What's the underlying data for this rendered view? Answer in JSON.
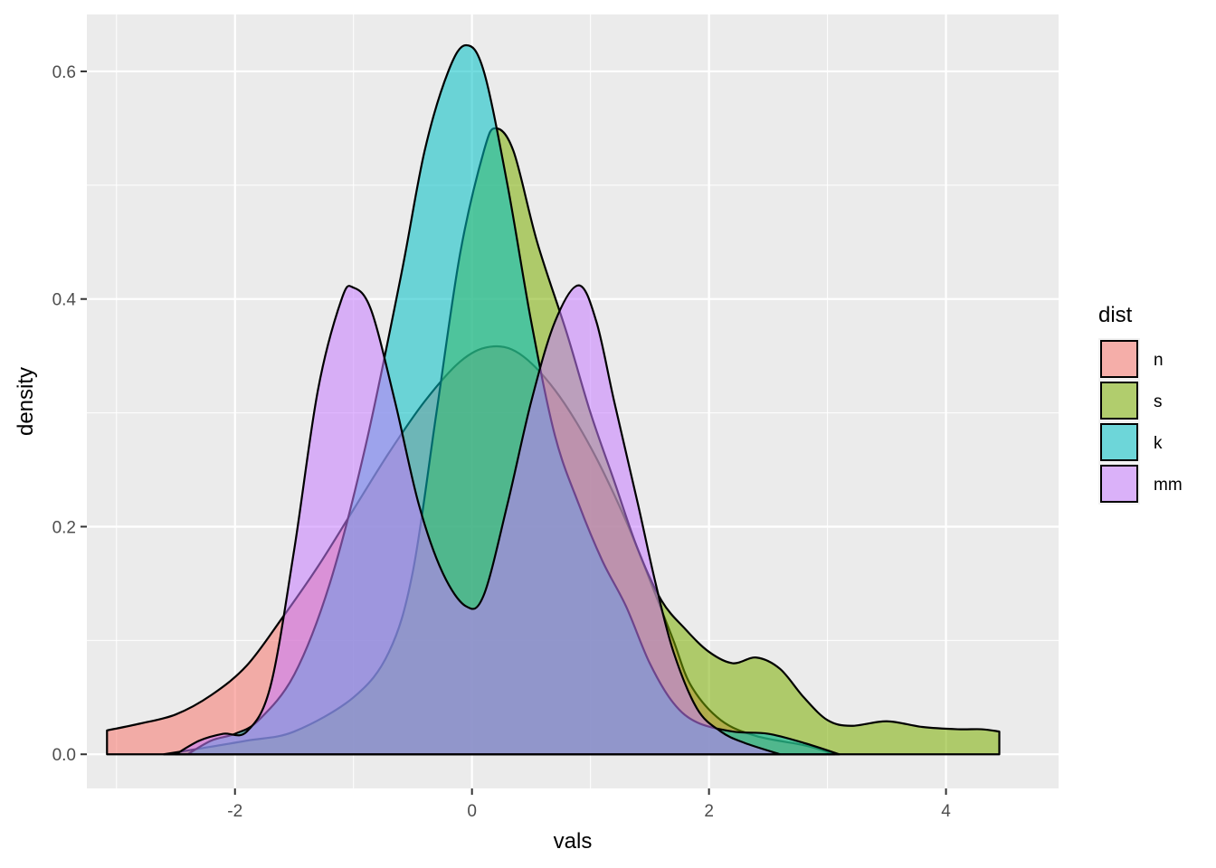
{
  "chart_data": {
    "type": "area",
    "subtype": "density",
    "xlabel": "vals",
    "ylabel": "density",
    "xlim": [
      -3.25,
      4.95
    ],
    "ylim": [
      -0.03,
      0.65
    ],
    "x_ticks": [
      -2,
      0,
      2,
      4
    ],
    "x_tick_labels": [
      "-2",
      "0",
      "2",
      "4"
    ],
    "y_ticks": [
      0.0,
      0.2,
      0.4,
      0.6
    ],
    "y_tick_labels": [
      "0.0",
      "0.2",
      "0.4",
      "0.6"
    ],
    "grid": true,
    "legend": {
      "title": "dist",
      "position": "right"
    },
    "series": [
      {
        "name": "n",
        "color": "#F8766D",
        "points": [
          [
            -3.08,
            0.021
          ],
          [
            -2.8,
            0.027
          ],
          [
            -2.5,
            0.035
          ],
          [
            -2.2,
            0.052
          ],
          [
            -1.9,
            0.078
          ],
          [
            -1.6,
            0.12
          ],
          [
            -1.3,
            0.165
          ],
          [
            -1.0,
            0.215
          ],
          [
            -0.7,
            0.265
          ],
          [
            -0.4,
            0.31
          ],
          [
            -0.1,
            0.345
          ],
          [
            0.15,
            0.358
          ],
          [
            0.4,
            0.352
          ],
          [
            0.7,
            0.32
          ],
          [
            1.0,
            0.27
          ],
          [
            1.3,
            0.205
          ],
          [
            1.55,
            0.14
          ],
          [
            1.7,
            0.1
          ],
          [
            1.85,
            0.06
          ],
          [
            2.1,
            0.03
          ],
          [
            2.4,
            0.016
          ],
          [
            2.8,
            0.008
          ],
          [
            3.06,
            0.0
          ]
        ]
      },
      {
        "name": "s",
        "color": "#7CAE00",
        "points": [
          [
            -2.6,
            0.0
          ],
          [
            -2.3,
            0.005
          ],
          [
            -1.9,
            0.012
          ],
          [
            -1.5,
            0.02
          ],
          [
            -1.0,
            0.05
          ],
          [
            -0.7,
            0.09
          ],
          [
            -0.5,
            0.16
          ],
          [
            -0.3,
            0.3
          ],
          [
            -0.1,
            0.44
          ],
          [
            0.1,
            0.53
          ],
          [
            0.2,
            0.55
          ],
          [
            0.35,
            0.53
          ],
          [
            0.55,
            0.45
          ],
          [
            0.8,
            0.37
          ],
          [
            1.0,
            0.3
          ],
          [
            1.2,
            0.24
          ],
          [
            1.4,
            0.18
          ],
          [
            1.6,
            0.135
          ],
          [
            1.8,
            0.11
          ],
          [
            2.0,
            0.09
          ],
          [
            2.2,
            0.08
          ],
          [
            2.4,
            0.085
          ],
          [
            2.6,
            0.075
          ],
          [
            2.8,
            0.05
          ],
          [
            3.0,
            0.03
          ],
          [
            3.2,
            0.025
          ],
          [
            3.5,
            0.029
          ],
          [
            3.8,
            0.024
          ],
          [
            4.1,
            0.022
          ],
          [
            4.3,
            0.022
          ],
          [
            4.45,
            0.02
          ]
        ]
      },
      {
        "name": "k",
        "color": "#00BFC4",
        "points": [
          [
            -2.4,
            0.0
          ],
          [
            -2.2,
            0.012
          ],
          [
            -2.0,
            0.018
          ],
          [
            -1.8,
            0.03
          ],
          [
            -1.5,
            0.07
          ],
          [
            -1.2,
            0.15
          ],
          [
            -0.9,
            0.27
          ],
          [
            -0.6,
            0.42
          ],
          [
            -0.4,
            0.53
          ],
          [
            -0.2,
            0.6
          ],
          [
            -0.05,
            0.623
          ],
          [
            0.1,
            0.6
          ],
          [
            0.3,
            0.5
          ],
          [
            0.5,
            0.38
          ],
          [
            0.7,
            0.28
          ],
          [
            0.9,
            0.22
          ],
          [
            1.1,
            0.17
          ],
          [
            1.3,
            0.13
          ],
          [
            1.5,
            0.08
          ],
          [
            1.7,
            0.045
          ],
          [
            1.9,
            0.028
          ],
          [
            2.2,
            0.02
          ],
          [
            2.5,
            0.018
          ],
          [
            2.8,
            0.01
          ],
          [
            3.1,
            0.0
          ]
        ]
      },
      {
        "name": "mm",
        "color": "#C77CFF",
        "points": [
          [
            -2.5,
            0.0
          ],
          [
            -2.3,
            0.012
          ],
          [
            -2.1,
            0.018
          ],
          [
            -1.9,
            0.02
          ],
          [
            -1.7,
            0.06
          ],
          [
            -1.5,
            0.18
          ],
          [
            -1.3,
            0.32
          ],
          [
            -1.1,
            0.4
          ],
          [
            -1.0,
            0.41
          ],
          [
            -0.85,
            0.39
          ],
          [
            -0.65,
            0.31
          ],
          [
            -0.45,
            0.22
          ],
          [
            -0.25,
            0.16
          ],
          [
            -0.05,
            0.13
          ],
          [
            0.1,
            0.14
          ],
          [
            0.3,
            0.22
          ],
          [
            0.5,
            0.31
          ],
          [
            0.7,
            0.38
          ],
          [
            0.9,
            0.412
          ],
          [
            1.05,
            0.38
          ],
          [
            1.2,
            0.31
          ],
          [
            1.4,
            0.22
          ],
          [
            1.55,
            0.15
          ],
          [
            1.7,
            0.09
          ],
          [
            1.9,
            0.04
          ],
          [
            2.1,
            0.02
          ],
          [
            2.3,
            0.01
          ],
          [
            2.6,
            0.0
          ]
        ]
      }
    ]
  }
}
